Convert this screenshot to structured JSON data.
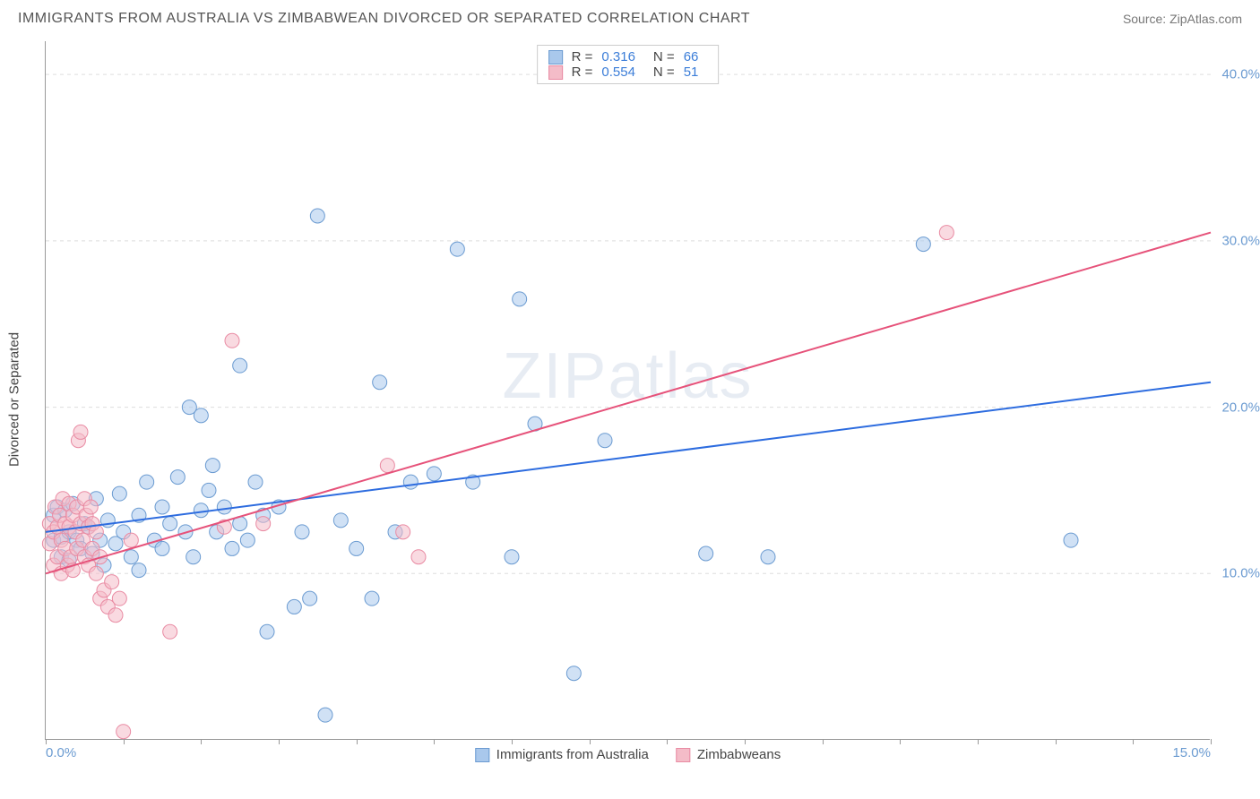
{
  "header": {
    "title": "IMMIGRANTS FROM AUSTRALIA VS ZIMBABWEAN DIVORCED OR SEPARATED CORRELATION CHART",
    "source": "Source: ZipAtlas.com"
  },
  "ylabel": "Divorced or Separated",
  "watermark": "ZIPatlas",
  "chart": {
    "type": "scatter",
    "x_range": [
      0,
      15
    ],
    "y_range": [
      0,
      42
    ],
    "x_ticks": [
      0,
      5,
      10,
      15
    ],
    "x_tick_labels": [
      "0.0%",
      "",
      "",
      "15.0%"
    ],
    "y_ticks": [
      10,
      20,
      30,
      40
    ],
    "y_tick_labels": [
      "10.0%",
      "20.0%",
      "30.0%",
      "40.0%"
    ],
    "minor_x_ticks": [
      1,
      2,
      3,
      4,
      6,
      7,
      8,
      9,
      11,
      12,
      13,
      14
    ],
    "background_color": "#ffffff",
    "grid_color": "#dddddd",
    "marker_radius": 8,
    "marker_opacity": 0.55,
    "series": [
      {
        "name": "Immigrants from Australia",
        "color_fill": "#a9c8ec",
        "color_stroke": "#6b9bd1",
        "r": 0.316,
        "n": 66,
        "trend": {
          "x1": 0,
          "y1": 12.5,
          "x2": 15,
          "y2": 21.5,
          "color": "#2d6cdf",
          "width": 2
        },
        "points": [
          [
            0.1,
            13.5
          ],
          [
            0.1,
            12.0
          ],
          [
            0.15,
            14.0
          ],
          [
            0.2,
            12.2
          ],
          [
            0.2,
            11.0
          ],
          [
            0.25,
            13.8
          ],
          [
            0.3,
            12.5
          ],
          [
            0.3,
            10.8
          ],
          [
            0.35,
            14.2
          ],
          [
            0.4,
            12.0
          ],
          [
            0.45,
            11.5
          ],
          [
            0.5,
            13.0
          ],
          [
            0.55,
            12.8
          ],
          [
            0.6,
            11.2
          ],
          [
            0.65,
            14.5
          ],
          [
            0.7,
            12.0
          ],
          [
            0.75,
            10.5
          ],
          [
            0.8,
            13.2
          ],
          [
            0.9,
            11.8
          ],
          [
            0.95,
            14.8
          ],
          [
            1.0,
            12.5
          ],
          [
            1.1,
            11.0
          ],
          [
            1.2,
            13.5
          ],
          [
            1.2,
            10.2
          ],
          [
            1.3,
            15.5
          ],
          [
            1.4,
            12.0
          ],
          [
            1.5,
            14.0
          ],
          [
            1.5,
            11.5
          ],
          [
            1.6,
            13.0
          ],
          [
            1.7,
            15.8
          ],
          [
            1.8,
            12.5
          ],
          [
            1.85,
            20.0
          ],
          [
            1.9,
            11.0
          ],
          [
            2.0,
            13.8
          ],
          [
            2.0,
            19.5
          ],
          [
            2.1,
            15.0
          ],
          [
            2.15,
            16.5
          ],
          [
            2.2,
            12.5
          ],
          [
            2.3,
            14.0
          ],
          [
            2.4,
            11.5
          ],
          [
            2.5,
            13.0
          ],
          [
            2.5,
            22.5
          ],
          [
            2.6,
            12.0
          ],
          [
            2.7,
            15.5
          ],
          [
            2.8,
            13.5
          ],
          [
            2.85,
            6.5
          ],
          [
            3.0,
            14.0
          ],
          [
            3.2,
            8.0
          ],
          [
            3.3,
            12.5
          ],
          [
            3.4,
            8.5
          ],
          [
            3.5,
            31.5
          ],
          [
            3.6,
            1.5
          ],
          [
            3.8,
            13.2
          ],
          [
            4.0,
            11.5
          ],
          [
            4.2,
            8.5
          ],
          [
            4.3,
            21.5
          ],
          [
            4.5,
            12.5
          ],
          [
            4.7,
            15.5
          ],
          [
            5.0,
            16.0
          ],
          [
            5.3,
            29.5
          ],
          [
            5.5,
            15.5
          ],
          [
            6.0,
            11.0
          ],
          [
            6.1,
            26.5
          ],
          [
            6.3,
            19.0
          ],
          [
            6.8,
            4.0
          ],
          [
            7.2,
            18.0
          ],
          [
            8.5,
            11.2
          ],
          [
            9.3,
            11.0
          ],
          [
            11.3,
            29.8
          ],
          [
            13.2,
            12.0
          ]
        ]
      },
      {
        "name": "Zimbabweans",
        "color_fill": "#f4bcc8",
        "color_stroke": "#e98ba3",
        "r": 0.554,
        "n": 51,
        "trend": {
          "x1": 0,
          "y1": 10.0,
          "x2": 15,
          "y2": 30.5,
          "color": "#e6527a",
          "width": 2
        },
        "points": [
          [
            0.05,
            13.0
          ],
          [
            0.05,
            11.8
          ],
          [
            0.1,
            12.5
          ],
          [
            0.1,
            10.5
          ],
          [
            0.12,
            14.0
          ],
          [
            0.15,
            11.0
          ],
          [
            0.15,
            12.8
          ],
          [
            0.18,
            13.5
          ],
          [
            0.2,
            10.0
          ],
          [
            0.2,
            12.0
          ],
          [
            0.22,
            14.5
          ],
          [
            0.25,
            11.5
          ],
          [
            0.25,
            13.0
          ],
          [
            0.28,
            10.5
          ],
          [
            0.3,
            12.8
          ],
          [
            0.3,
            14.2
          ],
          [
            0.32,
            11.0
          ],
          [
            0.35,
            13.5
          ],
          [
            0.35,
            10.2
          ],
          [
            0.38,
            12.5
          ],
          [
            0.4,
            14.0
          ],
          [
            0.4,
            11.5
          ],
          [
            0.42,
            18.0
          ],
          [
            0.45,
            13.0
          ],
          [
            0.45,
            18.5
          ],
          [
            0.48,
            12.0
          ],
          [
            0.5,
            14.5
          ],
          [
            0.5,
            11.0
          ],
          [
            0.52,
            13.5
          ],
          [
            0.55,
            10.5
          ],
          [
            0.55,
            12.8
          ],
          [
            0.58,
            14.0
          ],
          [
            0.6,
            11.5
          ],
          [
            0.6,
            13.0
          ],
          [
            0.65,
            10.0
          ],
          [
            0.65,
            12.5
          ],
          [
            0.7,
            8.5
          ],
          [
            0.7,
            11.0
          ],
          [
            0.75,
            9.0
          ],
          [
            0.8,
            8.0
          ],
          [
            0.85,
            9.5
          ],
          [
            0.9,
            7.5
          ],
          [
            0.95,
            8.5
          ],
          [
            1.0,
            0.5
          ],
          [
            1.1,
            12.0
          ],
          [
            1.6,
            6.5
          ],
          [
            2.3,
            12.8
          ],
          [
            2.4,
            24.0
          ],
          [
            2.8,
            13.0
          ],
          [
            4.4,
            16.5
          ],
          [
            4.6,
            12.5
          ],
          [
            4.8,
            11.0
          ],
          [
            11.6,
            30.5
          ]
        ]
      }
    ]
  },
  "legend_top": {
    "r_label": "R  =",
    "n_label": "N  ="
  },
  "legend_bottom": [
    {
      "label": "Immigrants from Australia",
      "fill": "#a9c8ec",
      "stroke": "#6b9bd1"
    },
    {
      "label": "Zimbabweans",
      "fill": "#f4bcc8",
      "stroke": "#e98ba3"
    }
  ]
}
